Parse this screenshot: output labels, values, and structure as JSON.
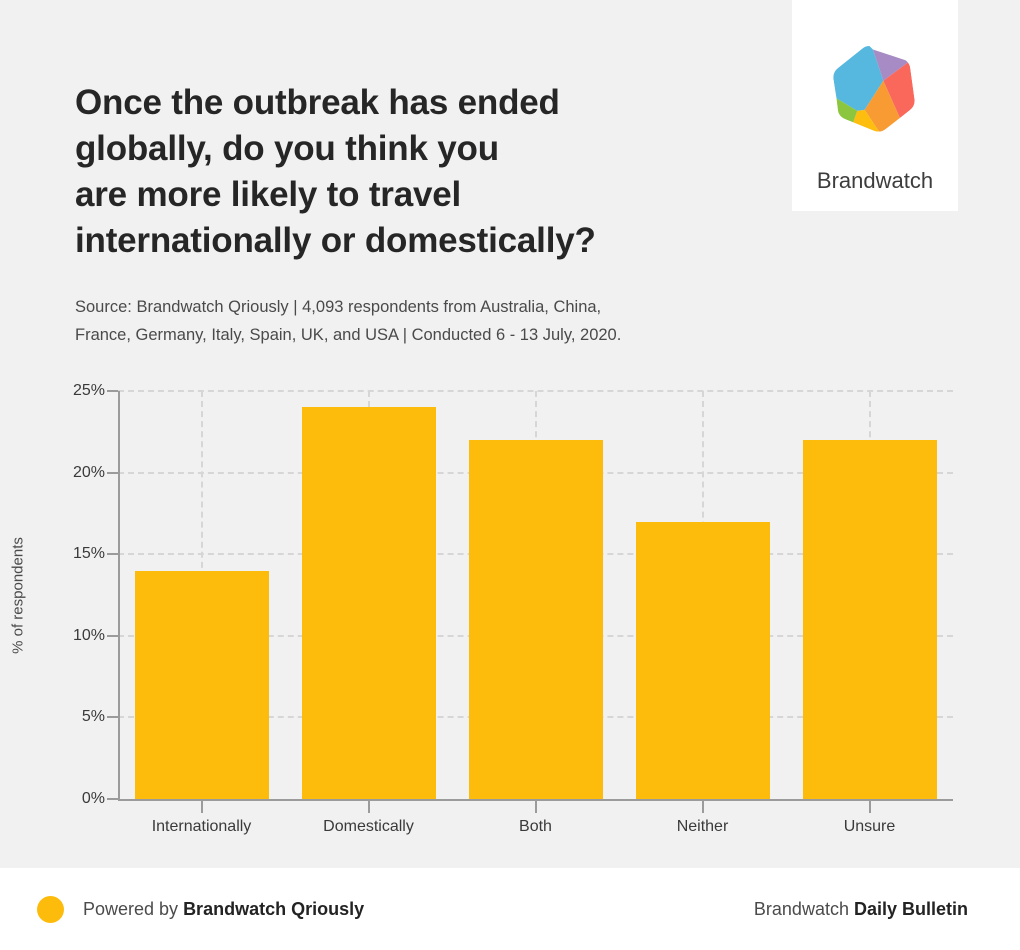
{
  "header": {
    "title": "Once the outbreak has ended\nglobally, do you think you\nare more likely to travel\ninternationally or domestically?",
    "source": "Source: Brandwatch Qriously | 4,093 respondents from Australia, China,\nFrance, Germany, Italy, Spain, UK, and USA | Conducted 6 - 13 July, 2020."
  },
  "logo": {
    "wordmark": "Brandwatch",
    "colors": {
      "blue": "#56b7df",
      "purple": "#a78bc4",
      "red": "#f9685b",
      "orange": "#f89b33",
      "yellow": "#fdbe10",
      "green": "#8cc63f"
    }
  },
  "chart_data": {
    "type": "bar",
    "categories": [
      "Internationally",
      "Domestically",
      "Both",
      "Neither",
      "Unsure"
    ],
    "values": [
      14,
      24,
      22,
      17,
      22
    ],
    "title": "Once the outbreak has ended globally, do you think you are more likely to travel internationally or domestically?",
    "xlabel": "",
    "ylabel": "% of respondents",
    "ylim": [
      0,
      25
    ],
    "yticks": [
      0,
      5,
      10,
      15,
      20,
      25
    ],
    "ytick_labels": [
      "0%",
      "5%",
      "10%",
      "15%",
      "20%",
      "25%"
    ],
    "bar_color": "#fdbc0b",
    "grid": "dashed horizontal and vertical",
    "legend": false
  },
  "footer": {
    "dot_color": "#fdbc0b",
    "powered_prefix": "Powered by ",
    "powered_brand": "Brandwatch Qriously",
    "right_prefix": "Brandwatch ",
    "right_bold": "Daily Bulletin"
  }
}
